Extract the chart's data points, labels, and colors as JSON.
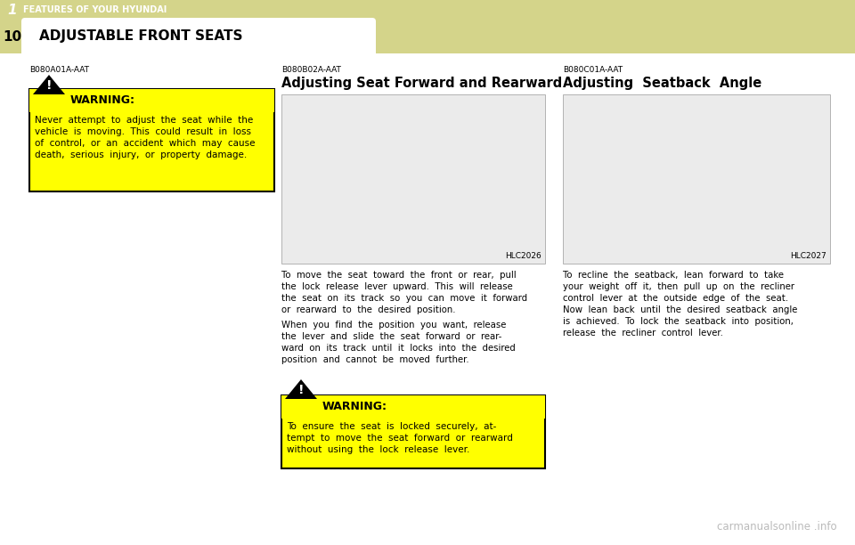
{
  "bg_color": "#ffffff",
  "header_bg": "#d4d48a",
  "page_num": "1",
  "header_label": "FEATURES OF YOUR HYUNDAI",
  "section_num": "10",
  "section_title": "ADJUSTABLE FRONT SEATS",
  "warning_bg": "#ffff00",
  "warning_border": "#000000",
  "left_ref": "B080A01A-AAT",
  "warning1_title": "WARNING:",
  "warning1_lines": [
    "Never  attempt  to  adjust  the  seat  while  the",
    "vehicle  is  moving.  This  could  result  in  loss",
    "of  control,  or  an  accident  which  may  cause",
    "death,  serious  injury,  or  property  damage."
  ],
  "mid_ref": "B080B02A-AAT",
  "mid_title": "Adjusting Seat Forward and Rearward",
  "mid_img_label": "HLC2026",
  "mid_text_p1": [
    "To  move  the  seat  toward  the  front  or  rear,  pull",
    "the  lock  release  lever  upward.  This  will  release",
    "the  seat  on  its  track  so  you  can  move  it  forward",
    "or  rearward  to  the  desired  position."
  ],
  "mid_text_p2": [
    "When  you  find  the  position  you  want,  release",
    "the  lever  and  slide  the  seat  forward  or  rear-",
    "ward  on  its  track  until  it  locks  into  the  desired",
    "position  and  cannot  be  moved  further."
  ],
  "warning2_title": "WARNING:",
  "warning2_lines": [
    "To  ensure  the  seat  is  locked  securely,  at-",
    "tempt  to  move  the  seat  forward  or  rearward",
    "without  using  the  lock  release  lever."
  ],
  "right_ref": "B080C01A-AAT",
  "right_title": "Adjusting  Seatback  Angle",
  "right_img_label": "HLC2027",
  "right_text": [
    "To  recline  the  seatback,  lean  forward  to  take",
    "your  weight  off  it,  then  pull  up  on  the  recliner",
    "control  lever  at  the  outside  edge  of  the  seat.",
    "Now  lean  back  until  the  desired  seatback  angle",
    "is  achieved.  To  lock  the  seatback  into  position,",
    "release  the  recliner  control  lever."
  ],
  "watermark": "carmanualsonline .info"
}
